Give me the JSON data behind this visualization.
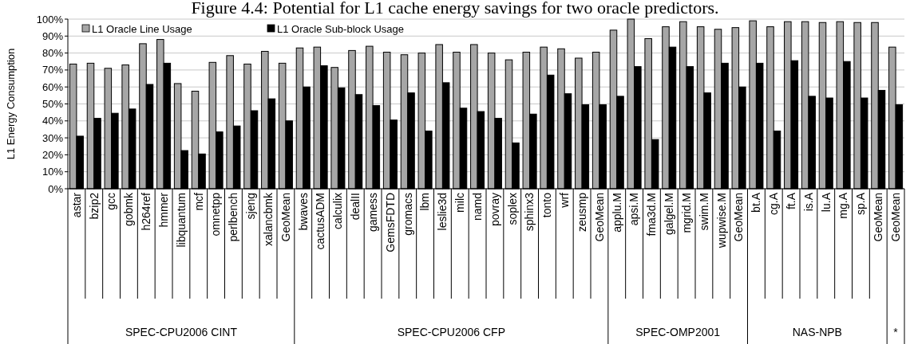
{
  "chart_data": {
    "type": "bar",
    "title": "Figure 4.4: Potential for L1 cache energy savings for two oracle predictors.",
    "ylabel": "L1 Energy Consumption",
    "categories": [
      "astar",
      "bzip2",
      "gcc",
      "gobmk",
      "h264ref",
      "hmmer",
      "libquantum",
      "mcf",
      "omnetpp",
      "perlbench",
      "sjeng",
      "xalancbmk",
      "GeoMean",
      "bwaves",
      "cactusADM",
      "calculix",
      "dealII",
      "gamess",
      "GemsFDTD",
      "gromacs",
      "lbm",
      "leslie3d",
      "milc",
      "namd",
      "povray",
      "soplex",
      "sphinx3",
      "tonto",
      "wrf",
      "zeusmp",
      "GeoMean",
      "applu.M",
      "apsi.M",
      "fma3d.M",
      "galgel.M",
      "mgrid.M",
      "swim.M",
      "wupwise.M",
      "GeoMean",
      "bt.A",
      "cg.A",
      "ft.A",
      "is.A",
      "lu.A",
      "mg.A",
      "sp.A",
      "GeoMean",
      "GeoMean"
    ],
    "series": [
      {
        "name": "L1 Oracle Line Usage",
        "color": "#a6a6a6",
        "values": [
          73.5,
          74,
          71,
          73,
          85.5,
          88,
          62,
          57.5,
          74.5,
          78.5,
          73.5,
          81,
          74,
          83,
          83.5,
          71.5,
          81.5,
          84,
          80.5,
          79,
          80,
          85,
          80.5,
          85,
          80,
          76,
          80.5,
          83.5,
          82.5,
          77,
          80.5,
          93.5,
          100,
          88.5,
          95.5,
          98.5,
          95.5,
          94,
          95,
          99,
          95.5,
          98.5,
          98.5,
          98,
          98.5,
          98,
          98,
          83.5
        ]
      },
      {
        "name": "L1 Oracle Sub-block Usage",
        "color": "#000000",
        "values": [
          31,
          41.5,
          44.5,
          47,
          61.5,
          74,
          22.5,
          20.5,
          33.5,
          37,
          46,
          53,
          40,
          60,
          72.5,
          59.5,
          55.5,
          49,
          40.5,
          56.5,
          34,
          62.5,
          47.5,
          45.5,
          41.5,
          27,
          44,
          67,
          56,
          49.5,
          49.5,
          54.5,
          72,
          29,
          83.5,
          72,
          56.5,
          74,
          60,
          74,
          34,
          75.5,
          54.5,
          53.5,
          75,
          53.5,
          58,
          49.5
        ]
      }
    ],
    "ylim": [
      0,
      100
    ],
    "yticks": [
      {
        "value": 0,
        "label": "0%"
      },
      {
        "value": 10,
        "label": "10%"
      },
      {
        "value": 20,
        "label": "20%"
      },
      {
        "value": 30,
        "label": "30%"
      },
      {
        "value": 40,
        "label": "40%"
      },
      {
        "value": 50,
        "label": "50%"
      },
      {
        "value": 60,
        "label": "60%"
      },
      {
        "value": 70,
        "label": "70%"
      },
      {
        "value": 80,
        "label": "80%"
      },
      {
        "value": 90,
        "label": "90%"
      },
      {
        "value": 100,
        "label": "100%"
      }
    ],
    "grid": "y",
    "legend": "top",
    "annotations": [
      "SPEC-CPU2006 CINT",
      "SPEC-CPU2006 CFP",
      "SPEC-OMP2001",
      "NAS-NPB",
      "*"
    ]
  }
}
